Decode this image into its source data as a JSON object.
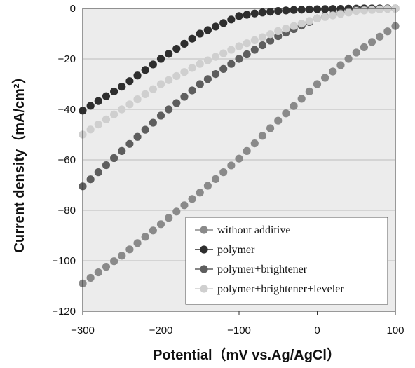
{
  "chart_data": {
    "type": "scatter",
    "xlabel": "Potential（mV vs.Ag/AgCl）",
    "ylabel": "Current density（mA/cm²）",
    "xlim": [
      -300,
      100
    ],
    "ylim": [
      -120,
      0
    ],
    "x_ticks": [
      "−300",
      "−200",
      "−100",
      "0",
      "100"
    ],
    "y_ticks": [
      "0",
      "−20",
      "−40",
      "−60",
      "−80",
      "−100",
      "−120"
    ],
    "grid": "horizontal",
    "legend_position": "bottom-right",
    "plot_background": "#ececec",
    "series": [
      {
        "name": "without additive",
        "color": "#8a8a8a",
        "x": [
          -300,
          -290,
          -280,
          -270,
          -260,
          -250,
          -240,
          -230,
          -220,
          -210,
          -200,
          -190,
          -180,
          -170,
          -160,
          -150,
          -140,
          -130,
          -120,
          -110,
          -100,
          -90,
          -80,
          -70,
          -60,
          -50,
          -40,
          -30,
          -20,
          -10,
          0,
          10,
          20,
          30,
          40,
          50,
          60,
          70,
          80,
          90,
          100
        ],
        "y": [
          -109.0,
          -106.8,
          -104.6,
          -102.4,
          -100.2,
          -98.0,
          -95.5,
          -93.0,
          -90.5,
          -88.0,
          -85.5,
          -83.0,
          -80.5,
          -78.0,
          -75.5,
          -73.0,
          -70.3,
          -67.6,
          -64.9,
          -62.2,
          -59.5,
          -56.5,
          -53.5,
          -50.5,
          -47.5,
          -44.5,
          -41.6,
          -38.7,
          -35.8,
          -32.9,
          -30.0,
          -27.5,
          -25.0,
          -22.5,
          -20.0,
          -17.5,
          -15.4,
          -13.3,
          -11.2,
          -9.1,
          -7.0
        ]
      },
      {
        "name": "polymer",
        "color": "#2e2e2e",
        "x": [
          -300,
          -290,
          -280,
          -270,
          -260,
          -250,
          -240,
          -230,
          -220,
          -210,
          -200,
          -190,
          -180,
          -170,
          -160,
          -150,
          -140,
          -130,
          -120,
          -110,
          -100,
          -90,
          -80,
          -70,
          -60,
          -50,
          -40,
          -30,
          -20,
          -10,
          0,
          10,
          20,
          30,
          40,
          50,
          60,
          70,
          80,
          90,
          100
        ],
        "y": [
          -40.5,
          -38.6,
          -36.7,
          -34.8,
          -32.9,
          -31.0,
          -28.8,
          -26.6,
          -24.4,
          -22.2,
          -20.0,
          -18.0,
          -16.0,
          -14.0,
          -12.0,
          -10.0,
          -8.6,
          -7.2,
          -5.8,
          -4.4,
          -3.0,
          -2.5,
          -2.0,
          -1.6,
          -1.3,
          -1.0,
          -0.8,
          -0.6,
          -0.5,
          -0.4,
          -0.3,
          -0.25,
          -0.2,
          -0.15,
          -0.1,
          -0.05,
          0,
          0,
          0,
          0,
          0
        ]
      },
      {
        "name": "polymer+brightener",
        "color": "#5e5e5e",
        "x": [
          -300,
          -290,
          -280,
          -270,
          -260,
          -250,
          -240,
          -230,
          -220,
          -210,
          -200,
          -190,
          -180,
          -170,
          -160,
          -150,
          -140,
          -130,
          -120,
          -110,
          -100,
          -90,
          -80,
          -70,
          -60,
          -50,
          -40,
          -30,
          -20,
          -10,
          0,
          10,
          20,
          30,
          40,
          50,
          60,
          70,
          80,
          90,
          100
        ],
        "y": [
          -70.5,
          -67.7,
          -64.9,
          -62.1,
          -59.3,
          -56.5,
          -53.7,
          -50.9,
          -48.1,
          -45.3,
          -42.5,
          -40.0,
          -37.5,
          -35.0,
          -32.5,
          -30.0,
          -28.0,
          -26.0,
          -24.0,
          -22.0,
          -20.0,
          -18.2,
          -16.4,
          -14.6,
          -12.8,
          -11.0,
          -9.6,
          -8.2,
          -6.8,
          -5.4,
          -4.0,
          -3.3,
          -2.6,
          -1.9,
          -1.2,
          -0.5,
          -0.4,
          -0.3,
          -0.2,
          -0.1,
          0
        ]
      },
      {
        "name": "polymer+brightener+leveler",
        "color": "#cfcfcf",
        "x": [
          -300,
          -290,
          -280,
          -270,
          -260,
          -250,
          -240,
          -230,
          -220,
          -210,
          -200,
          -190,
          -180,
          -170,
          -160,
          -150,
          -140,
          -130,
          -120,
          -110,
          -100,
          -90,
          -80,
          -70,
          -60,
          -50,
          -40,
          -30,
          -20,
          -10,
          0,
          10,
          20,
          30,
          40,
          50,
          60,
          70,
          80,
          90,
          100
        ],
        "y": [
          -50.0,
          -48.0,
          -46.0,
          -44.0,
          -42.0,
          -40.0,
          -38.0,
          -36.0,
          -34.0,
          -32.0,
          -30.0,
          -28.4,
          -26.8,
          -25.2,
          -23.6,
          -22.0,
          -20.6,
          -19.2,
          -17.8,
          -16.4,
          -15.0,
          -13.8,
          -12.6,
          -11.4,
          -10.2,
          -9.0,
          -8.0,
          -7.0,
          -6.0,
          -5.0,
          -4.0,
          -3.4,
          -2.8,
          -2.2,
          -1.6,
          -1.0,
          -0.8,
          -0.6,
          -0.4,
          -0.2,
          0
        ]
      }
    ]
  }
}
